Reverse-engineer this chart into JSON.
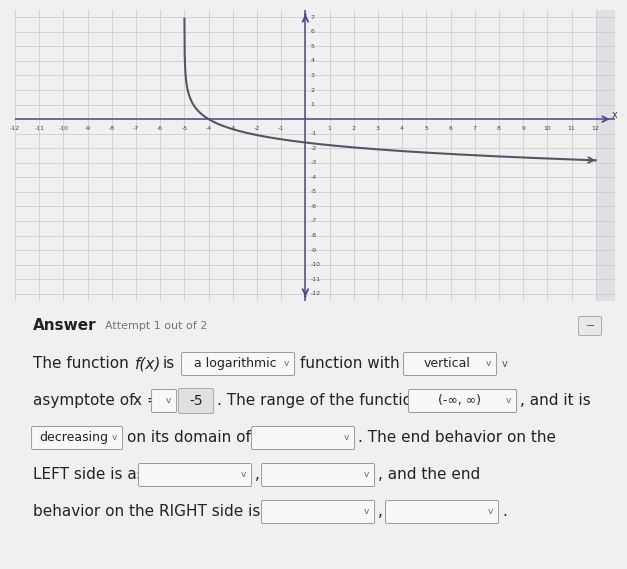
{
  "graph": {
    "xlim": [
      -12,
      12
    ],
    "ylim": [
      -12,
      7
    ],
    "xticks_neg": [
      -12,
      -11,
      -10,
      -9,
      -8,
      -7,
      -6,
      -5,
      -4,
      -3,
      -2,
      -1
    ],
    "xticks_pos": [
      1,
      2,
      3,
      4,
      5,
      6,
      7,
      8,
      9,
      10,
      11,
      12
    ],
    "yticks_pos": [
      1,
      2,
      3,
      4,
      5,
      6,
      7
    ],
    "yticks_neg": [
      -1,
      -2,
      -3,
      -4,
      -5,
      -6,
      -7,
      -8,
      -9,
      -10,
      -11,
      -12
    ],
    "asymptote_x": -5,
    "curve_color": "#555566",
    "axis_color": "#554488",
    "grid_color": "#c8c8cc",
    "graph_bg": "#f0f0f0",
    "outer_bg": "#e0e0e4"
  },
  "text": {
    "bg": "#f0f0f0",
    "answer_bold": "Answer",
    "answer_small": "Attempt 1 out of 2",
    "text_color": "#222222",
    "small_color": "#555555",
    "box_fill": "#e0e0e0",
    "box_edge": "#aaaaaa",
    "dropdown_fill": "#f8f8f8",
    "dropdown_edge": "#999999",
    "font_size": 11,
    "small_font": 8.5
  }
}
